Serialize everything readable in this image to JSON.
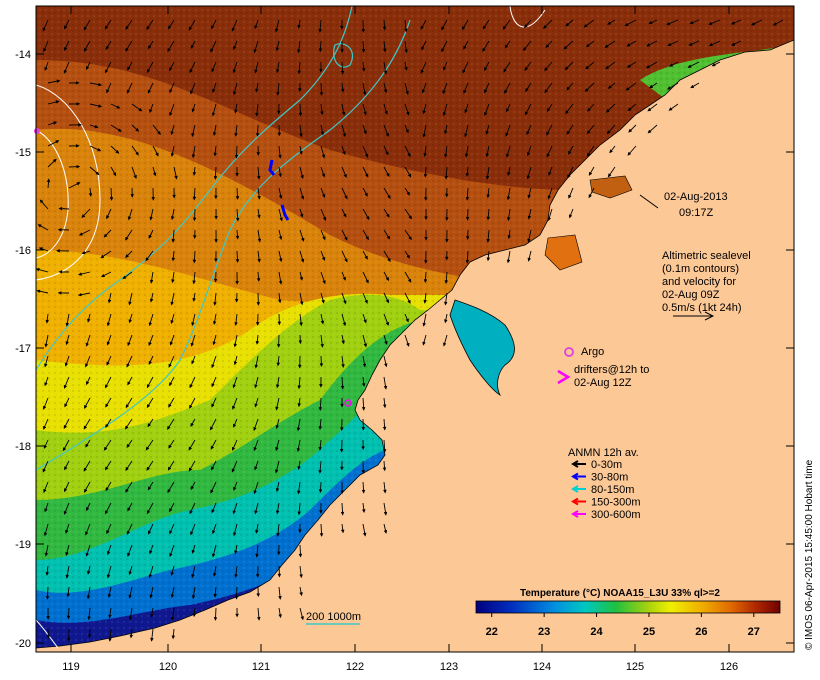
{
  "map": {
    "lat_ticks": [
      "-14",
      "-15",
      "-16",
      "-17",
      "-18",
      "-19",
      "-20"
    ],
    "lon_ticks": [
      "119",
      "120",
      "121",
      "122",
      "123",
      "124",
      "125",
      "126"
    ]
  },
  "timestamp": {
    "date": "02-Aug-2013",
    "time": "09:17Z"
  },
  "altimetry_note": {
    "lines": [
      "Altimetric sealevel",
      "(0.1m contours)",
      "and velocity for",
      "02-Aug 09Z",
      "0.5m/s (1kt 24h)"
    ]
  },
  "argo_label": "Argo",
  "drifters_note": {
    "lines": [
      "drifters@12h to",
      "02-Aug 12Z"
    ]
  },
  "anmn_legend": {
    "title": "ANMN 12h av.",
    "items": [
      {
        "label": "0-30m",
        "color": "#000000"
      },
      {
        "label": "30-80m",
        "color": "#0000ff"
      },
      {
        "label": "80-150m",
        "color": "#00d0d0"
      },
      {
        "label": "150-300m",
        "color": "#ff0000"
      },
      {
        "label": "300-600m",
        "color": "#ff00ff"
      }
    ]
  },
  "bathymetry_label": "200  1000m",
  "colorbar": {
    "title": "Temperature (°C) NOAA15_L3U 33% ql>=2",
    "tick_labels": [
      "22",
      "23",
      "24",
      "25",
      "26",
      "27"
    ],
    "range": [
      21.7,
      27.5
    ]
  },
  "credit": "© IMOS 06-Apr-2015 15:45:00 Hobart time",
  "colors": {
    "land": "#fcc896",
    "contour": "#ffffff",
    "bathymetry": "#40c8c8",
    "argo": "#e040e0",
    "drifter": "#ff00ff"
  }
}
